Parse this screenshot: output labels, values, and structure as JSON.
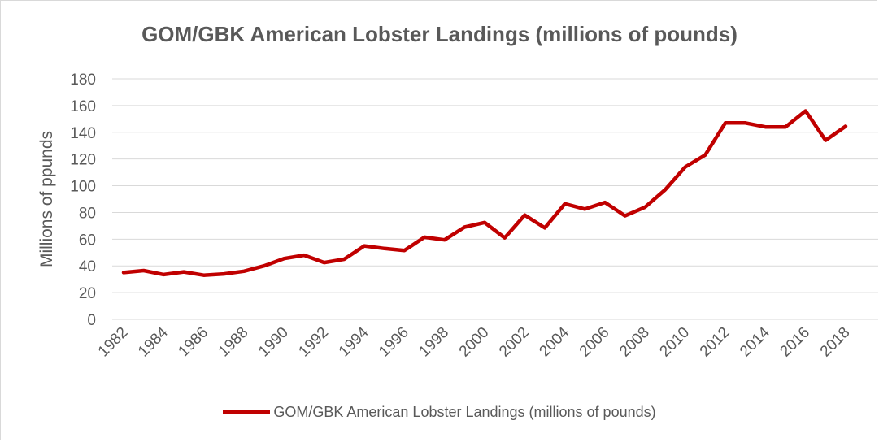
{
  "chart_data": {
    "type": "line",
    "title": "GOM/GBK American Lobster Landings (millions of pounds)",
    "xlabel": "",
    "ylabel": "Millions of ppunds",
    "ylim": [
      0,
      180
    ],
    "yticks": [
      0,
      20,
      40,
      60,
      80,
      100,
      120,
      140,
      160,
      180
    ],
    "xtick_labels": [
      "1982",
      "1984",
      "1986",
      "1988",
      "1990",
      "1992",
      "1994",
      "1996",
      "1998",
      "2000",
      "2002",
      "2004",
      "2006",
      "2008",
      "2010",
      "2012",
      "2014",
      "2016",
      "2018"
    ],
    "grid": true,
    "legend_position": "bottom",
    "color": "#c00000",
    "series": [
      {
        "name": "GOM/GBK American Lobster Landings (millions of pounds)",
        "x": [
          1982,
          1983,
          1984,
          1985,
          1986,
          1987,
          1988,
          1989,
          1990,
          1991,
          1992,
          1993,
          1994,
          1995,
          1996,
          1997,
          1998,
          1999,
          2000,
          2001,
          2002,
          2003,
          2004,
          2005,
          2006,
          2007,
          2008,
          2009,
          2010,
          2011,
          2012,
          2013,
          2014,
          2015,
          2016,
          2017,
          2018
        ],
        "values": [
          35,
          36.5,
          33.5,
          35.5,
          33,
          34,
          36,
          40,
          45.5,
          48,
          42.5,
          45,
          55,
          53,
          51.5,
          61.5,
          59.5,
          69,
          72.5,
          61,
          78,
          68.5,
          86.5,
          82.5,
          87.5,
          77.5,
          84,
          97,
          114,
          123,
          147,
          147,
          144,
          144,
          156,
          134,
          144.5
        ]
      }
    ]
  }
}
